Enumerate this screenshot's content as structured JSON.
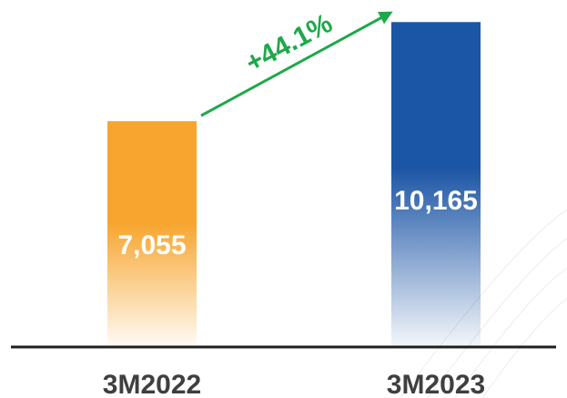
{
  "chart_data": {
    "type": "bar",
    "categories": [
      "3M2022",
      "3M2023"
    ],
    "values": [
      7055,
      10165
    ],
    "value_labels": [
      "7,055",
      "10,165"
    ],
    "change_label": "+44.1%",
    "bar_colors": [
      "#f7a52e",
      "#1b55a5"
    ],
    "change_color": "#1fa84a",
    "ylim": [
      0,
      12000
    ],
    "grid": false,
    "legend": "none"
  }
}
